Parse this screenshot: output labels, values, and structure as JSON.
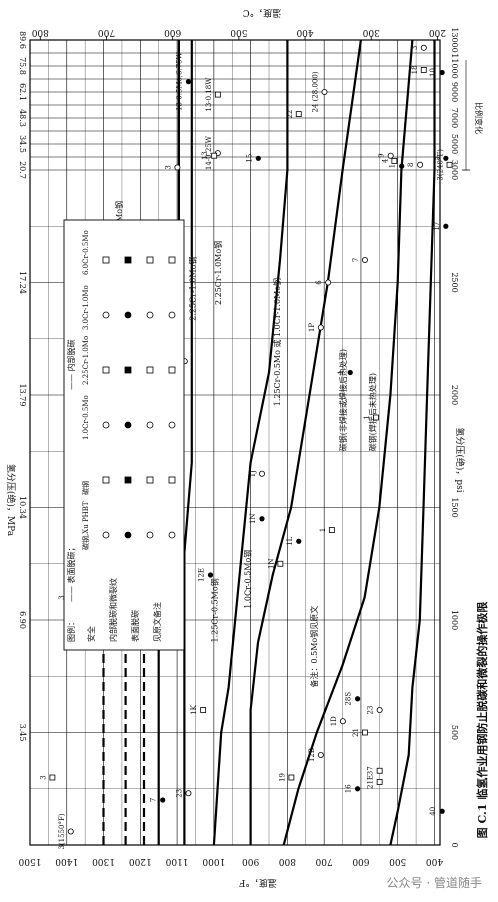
{
  "figure": {
    "caption": "图 C.1  临氢作业用钢防止脱碳和微裂的操作极限",
    "watermark": "公众号 · 管道随手"
  },
  "chart_data": {
    "type": "line",
    "orientation": "rotated-90",
    "temp_axis": {
      "label_f": "温度，°F",
      "label_c": "温度，°C",
      "f_ticks": [
        1500,
        1400,
        1300,
        1200,
        1100,
        1000,
        900,
        800,
        700,
        600,
        500,
        400
      ],
      "c_ticks": [
        800,
        700,
        600,
        500,
        400,
        300,
        200
      ],
      "range_f": [
        300,
        1500
      ]
    },
    "pressure_axis": {
      "label_psi": "氢分压(绝)，psi",
      "label_mpa": "氢分压(绝)，MPa",
      "psi_ticks": [
        0,
        500,
        1000,
        1500,
        2000,
        2500,
        3000,
        5000,
        7000,
        9000,
        11000,
        13000
      ],
      "psi_tick_labels": [
        "0",
        "500",
        "1000",
        "1500",
        "2000",
        "2500",
        "3000",
        "5000",
        "7000",
        "9000",
        "11000",
        "13000"
      ],
      "mpa_ticks": [
        3.45,
        6.9,
        10.34,
        13.79,
        17.24,
        20.7,
        34.5,
        48.3,
        62.1,
        75.8,
        89.6
      ],
      "mpa_tick_labels": [
        "3.45",
        "6.90",
        "10.34",
        "13.79",
        "17.24",
        "20.7",
        "34.5",
        "48.3",
        "62.1",
        "75.8",
        "89.6"
      ],
      "scale_break_psi": 3000,
      "scale_change_label": "比例变化"
    },
    "legend": {
      "title": "图例：",
      "surface_label": "—— 表面脱碳；",
      "internal_label": "—— 内部脱碳",
      "rows": [
        "安全",
        "内部脱碳和微裂纹",
        "表面脱碳",
        "见原文备注"
      ],
      "cols": [
        "碳钢,Xu PHBT",
        "碳钢",
        "1.0Cr-0.5Mo",
        "2.25Cr-1.0Mo",
        "3.0Cr-1.0Mo",
        "6.0Cr-0.5Mo"
      ]
    },
    "series": [
      {
        "name": "6.0Cr-0.5Mo钢",
        "style": "dashed",
        "x": [
          0,
          540,
          1200,
          2200,
          2550
        ],
        "y": [
          1300,
          1300,
          1300,
          1300,
          1300
        ]
      },
      {
        "name": "3.0Cr-1.0Mo钢",
        "style": "dashed",
        "x": [
          0,
          600,
          1200,
          2000,
          2600
        ],
        "y": [
          1240,
          1240,
          1240,
          1240,
          1240
        ]
      },
      {
        "name": "2.25Cr-1.0Mo钢",
        "style": "dashed",
        "x": [
          0,
          700,
          1300,
          2200,
          2600
        ],
        "y": [
          1190,
          1190,
          1190,
          1190,
          1190
        ]
      },
      {
        "name": "2.25Cr-1.0Mo钢",
        "style": "solid",
        "x": [
          0,
          1200,
          1700,
          2600,
          3000,
          13000
        ],
        "y": [
          1150,
          1150,
          1095,
          1095,
          1095,
          1095
        ]
      },
      {
        "name": "3.0Cr-1.0Mo钢",
        "style": "solid",
        "x": [
          0,
          1300,
          1700,
          2400,
          3000,
          13000
        ],
        "y": [
          1080,
          1080,
          1060,
          1060,
          1060,
          1060
        ]
      },
      {
        "name": "1.25Cr-0.5Mo钢",
        "style": "solid",
        "x": [
          0,
          500,
          700,
          1200,
          1700,
          2100,
          2600,
          3000,
          13000
        ],
        "y": [
          1000,
          980,
          960,
          930,
          900,
          850,
          820,
          800,
          800
        ]
      },
      {
        "name": "1.0Cr-0.5Mo钢",
        "style": "solid",
        "x": [
          0,
          600,
          900,
          1200,
          1500,
          2000,
          2500,
          3000,
          13000
        ],
        "y": [
          900,
          900,
          880,
          840,
          790,
          740,
          690,
          650,
          600
        ]
      },
      {
        "name": "碳钢(非焊接或焊接后热处理)",
        "style": "solid",
        "x": [
          0,
          250,
          500,
          800,
          1100,
          1500,
          2000,
          2500,
          3000,
          13000
        ],
        "y": [
          810,
          770,
          720,
          650,
          590,
          550,
          520,
          500,
          490,
          460
        ]
      },
      {
        "name": "碳钢(焊接后未热处理)",
        "style": "solid",
        "x": [
          0,
          150,
          400,
          700,
          1000,
          1500,
          2000,
          2500,
          3000,
          13000
        ],
        "y": [
          520,
          500,
          470,
          460,
          440,
          430,
          420,
          410,
          400,
          400
        ]
      }
    ],
    "line_labels": [
      {
        "text": "6.0Cr-0.5Mo钢",
        "x": 2600,
        "y": 1250
      },
      {
        "text": "3.0Cr-1.0Mo钢",
        "x": 2320,
        "y": 1090
      },
      {
        "text": "2.25Cr-1.0Mo钢",
        "x": 2330,
        "y": 1050
      },
      {
        "text": "2.25Cr-1.0Mo钢",
        "x": 2400,
        "y": 980
      },
      {
        "text": "1.25Cr-0.5Mo 或 1.0Cr-1.0Mo钢",
        "x": 1950,
        "y": 820
      },
      {
        "text": "1.25Cr-0.5Mo钢",
        "x": 900,
        "y": 990
      },
      {
        "text": "1.0Cr-0.5Mo钢",
        "x": 1050,
        "y": 900
      },
      {
        "text": "碳钢(非焊接或焊接后热处理)",
        "x": 1750,
        "y": 640
      },
      {
        "text": "碳钢(焊接后未热处理)",
        "x": 1750,
        "y": 560
      },
      {
        "text": "备注：0.5Mo钢见原文",
        "x": 700,
        "y": 720
      }
    ],
    "point_labels": [
      {
        "text": "7",
        "x": 2150,
        "y": 1090
      },
      {
        "text": "1N",
        "x": 1450,
        "y": 880
      },
      {
        "text": "1N",
        "x": 1250,
        "y": 830
      },
      {
        "text": "1J",
        "x": 1650,
        "y": 880
      },
      {
        "text": "1L",
        "x": 1350,
        "y": 780
      },
      {
        "text": "1",
        "x": 1400,
        "y": 690
      },
      {
        "text": "1P",
        "x": 2300,
        "y": 720
      },
      {
        "text": "1",
        "x": 2100,
        "y": 640
      },
      {
        "text": "1",
        "x": 1900,
        "y": 570
      },
      {
        "text": "7",
        "x": 2600,
        "y": 600
      },
      {
        "text": "17",
        "x": 2750,
        "y": 380
      },
      {
        "text": "22",
        "x": 7300,
        "y": 780
      },
      {
        "text": "24 (28.000)",
        "x": 9000,
        "y": 710
      },
      {
        "text": "13-0.5Mo,6.75W",
        "x": 9800,
        "y": 1080
      },
      {
        "text": "13-0.18W",
        "x": 8800,
        "y": 1000
      },
      {
        "text": "14-0.25W",
        "x": 4300,
        "y": 1000
      },
      {
        "text": "15",
        "x": 3900,
        "y": 890
      },
      {
        "text": "13",
        "x": 4100,
        "y": 1010
      },
      {
        "text": "3",
        "x": 3200,
        "y": 1110
      },
      {
        "text": "3",
        "x": 1100,
        "y": 1400
      },
      {
        "text": "3",
        "x": 300,
        "y": 1450
      },
      {
        "text": "3(1550°F)",
        "x": 60,
        "y": 1400
      },
      {
        "text": "12E",
        "x": 1200,
        "y": 1020
      },
      {
        "text": "1K",
        "x": 600,
        "y": 1040
      },
      {
        "text": "23",
        "x": 230,
        "y": 1080
      },
      {
        "text": "7",
        "x": 200,
        "y": 1150
      },
      {
        "text": "19",
        "x": 300,
        "y": 800
      },
      {
        "text": "12B",
        "x": 400,
        "y": 720
      },
      {
        "text": "16",
        "x": 250,
        "y": 620
      },
      {
        "text": "21",
        "x": 500,
        "y": 600
      },
      {
        "text": "23",
        "x": 600,
        "y": 560
      },
      {
        "text": "28S",
        "x": 650,
        "y": 620
      },
      {
        "text": "21E",
        "x": 280,
        "y": 560
      },
      {
        "text": "1D",
        "x": 550,
        "y": 660
      },
      {
        "text": "40",
        "x": 150,
        "y": 390
      },
      {
        "text": "37",
        "x": 330,
        "y": 560
      },
      {
        "text": "6",
        "x": 2500,
        "y": 700
      },
      {
        "text": "5",
        "x": 3900,
        "y": 380
      },
      {
        "text": "4",
        "x": 3700,
        "y": 520
      },
      {
        "text": "9",
        "x": 4100,
        "y": 530
      },
      {
        "text": "10",
        "x": 10500,
        "y": 390
      },
      {
        "text": "18",
        "x": 10700,
        "y": 440
      },
      {
        "text": "8",
        "x": 3400,
        "y": 450
      },
      {
        "text": "1",
        "x": 3300,
        "y": 500
      },
      {
        "text": "3(240°F)",
        "x": 3400,
        "y": 370
      },
      {
        "text": "3",
        "x": 12400,
        "y": 440
      }
    ],
    "grid": true
  }
}
